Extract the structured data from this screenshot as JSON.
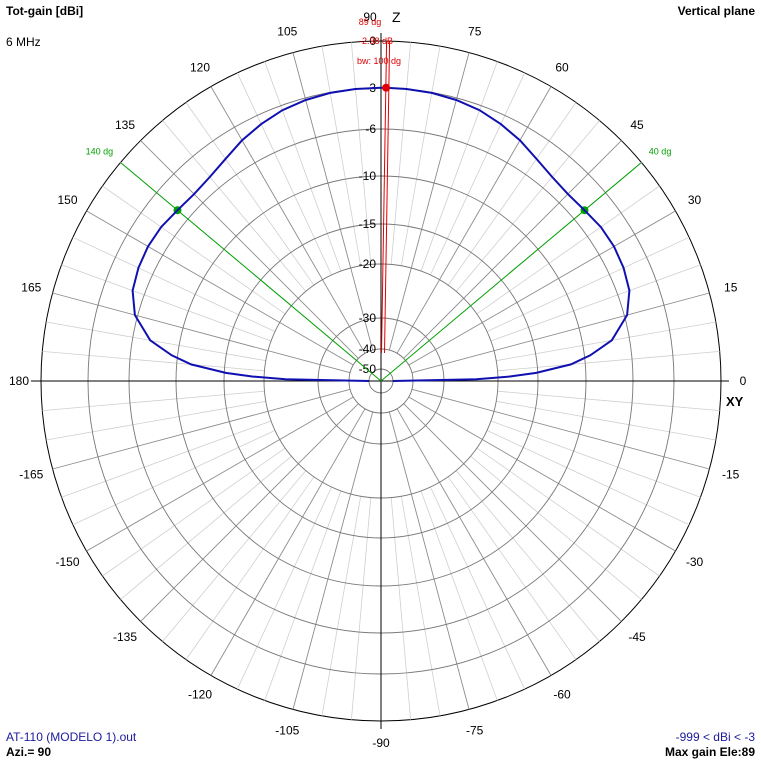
{
  "header": {
    "title": "Tot-gain [dBi]",
    "frequency": "6 MHz",
    "plane": "Vertical plane"
  },
  "footer": {
    "file": "AT-110 (MODELO 1).out",
    "azimuth": "Azi.= 90",
    "range": "-999 < dBi < -3",
    "max_gain": "Max gain Ele:89"
  },
  "axes": {
    "z_label": "Z",
    "xy_label": "XY"
  },
  "colors": {
    "pattern": "#1010b0",
    "beam_markers": "#00a000",
    "max_marker": "#e00000",
    "grid": "#a8a8a8",
    "axis": "#000000"
  },
  "chart_data": {
    "type": "polar",
    "angle_unit": "degrees",
    "angle_ticks": [
      0,
      15,
      30,
      45,
      60,
      75,
      105,
      120,
      135,
      150,
      165,
      180,
      -165,
      -150,
      -135,
      -120,
      -105,
      -90,
      -75,
      -60,
      -45,
      -30,
      -15
    ],
    "angle_top_label": "90",
    "radial_unit": "dBi",
    "radial_ticks": [
      0,
      -3,
      -6,
      -10,
      -15,
      -20,
      -30,
      -40,
      -50
    ],
    "max_gain": {
      "elevation": 89,
      "elevation_label": "89 dg",
      "gain": -2.98,
      "gain_label": "-2.98 dB",
      "beamwidth_label": "bw: 100 dg"
    },
    "beam_markers": [
      {
        "angle": 40,
        "label": "40 dg"
      },
      {
        "angle": 140,
        "label": "140 dg"
      }
    ],
    "pattern": {
      "elevation": [
        0,
        1,
        2,
        3,
        5,
        7,
        10,
        15,
        20,
        25,
        30,
        35,
        40,
        45,
        50,
        55,
        60,
        65,
        70,
        75,
        80,
        85,
        89,
        90,
        95,
        100,
        105,
        110,
        115,
        120,
        125,
        130,
        135,
        140,
        145,
        150,
        155,
        160,
        165,
        170,
        173,
        175,
        177,
        178,
        179,
        180
      ],
      "gain": [
        -50,
        -24,
        -18.5,
        -15.2,
        -11.5,
        -9.5,
        -7.5,
        -5.8,
        -5.1,
        -4.85,
        -4.75,
        -4.8,
        -5.0,
        -5.1,
        -4.95,
        -4.6,
        -4.1,
        -3.7,
        -3.35,
        -3.15,
        -3.03,
        -2.99,
        -2.98,
        -2.98,
        -2.99,
        -3.03,
        -3.15,
        -3.35,
        -3.7,
        -4.1,
        -4.6,
        -4.95,
        -5.1,
        -5.0,
        -4.8,
        -4.75,
        -4.85,
        -5.1,
        -5.8,
        -7.5,
        -9.5,
        -11.5,
        -15.2,
        -18.5,
        -24,
        -50
      ]
    }
  }
}
